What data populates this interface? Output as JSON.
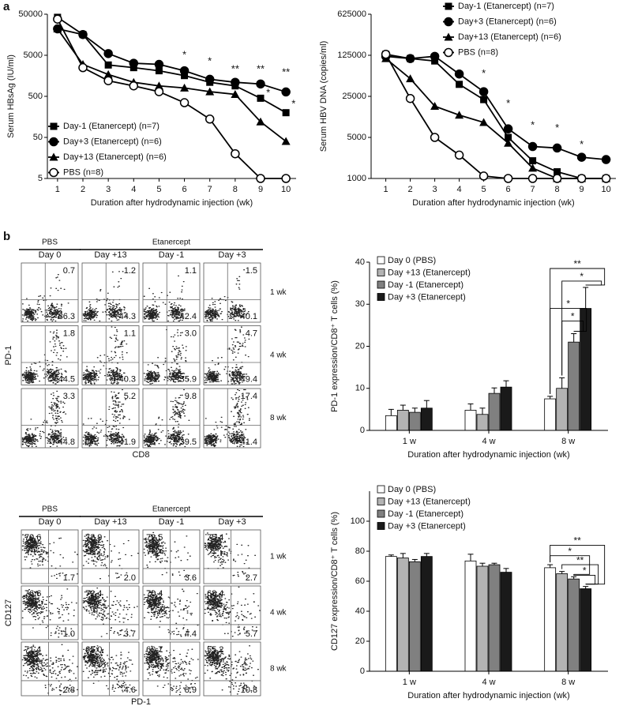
{
  "panel_labels": [
    "a",
    "b"
  ],
  "chart_data": [
    {
      "type": "line",
      "y_label": "Serum HBsAg (IU/ml)",
      "x_label": "Duration after hydrodynamic injection (wk)",
      "x": [
        1,
        2,
        3,
        4,
        5,
        6,
        7,
        8,
        9,
        10
      ],
      "xlim": [
        0.6,
        10.4
      ],
      "xticks": [
        1,
        2,
        3,
        4,
        5,
        6,
        7,
        8,
        9,
        10
      ],
      "ylim": [
        5,
        50000
      ],
      "yticks": [
        5,
        50,
        500,
        5000,
        50000
      ],
      "log_y": true,
      "legend": "lower left",
      "series": [
        {
          "name": "Day-1 (Etanercept) (n=7)",
          "marker": "square",
          "color": "#000000",
          "values": [
            42000,
            16000,
            2900,
            2500,
            2100,
            1600,
            1100,
            900,
            450,
            200
          ]
        },
        {
          "name": "Day+3 (Etanercept) (n=6)",
          "marker": "circle",
          "color": "#000000",
          "values": [
            22000,
            16000,
            5500,
            3200,
            3000,
            2100,
            1300,
            1100,
            1000,
            640
          ]
        },
        {
          "name": "Day+13 (Etanercept) (n=6)",
          "marker": "triangle",
          "color": "#000000",
          "values": [
            22000,
            3000,
            1700,
            1100,
            900,
            800,
            650,
            560,
            120,
            40
          ]
        },
        {
          "name": "PBS (n=8)",
          "marker": "circle-open",
          "color": "#000000",
          "values": [
            38000,
            2500,
            1200,
            900,
            650,
            350,
            140,
            20,
            5,
            5
          ]
        }
      ],
      "annotations": [
        {
          "text": "*",
          "x": 6,
          "y": 5000
        },
        {
          "text": "*",
          "x": 7,
          "y": 3500
        },
        {
          "text": "**",
          "x": 8,
          "y": 2250
        },
        {
          "text": "**",
          "x": 9,
          "y": 2250
        },
        {
          "text": "**",
          "x": 10,
          "y": 1900
        },
        {
          "text": "*",
          "x": 9.3,
          "y": 600
        },
        {
          "text": "*",
          "x": 10.3,
          "y": 320
        }
      ]
    },
    {
      "type": "line",
      "y_label": "Serum HBV DNA (copies/ml)",
      "x_label": "Duration after hydrodynamic injection (wk)",
      "x": [
        1,
        2,
        3,
        4,
        5,
        6,
        7,
        8,
        9,
        10
      ],
      "xlim": [
        0.4,
        10.4
      ],
      "xticks": [
        1,
        2,
        3,
        4,
        5,
        6,
        7,
        8,
        9,
        10
      ],
      "ylim": [
        1000,
        625000
      ],
      "yticks": [
        1000,
        5000,
        25000,
        125000,
        625000
      ],
      "log_y": true,
      "legend": "upper right",
      "series": [
        {
          "name": "Day-1 (Etanercept) (n=7)",
          "marker": "square",
          "color": "#000000",
          "values": [
            130000,
            110000,
            100000,
            40000,
            22000,
            5000,
            2000,
            1300,
            1000,
            1000
          ]
        },
        {
          "name": "Day+3 (Etanercept) (n=6)",
          "marker": "circle",
          "color": "#000000",
          "values": [
            120000,
            110000,
            120000,
            60000,
            30000,
            7000,
            3500,
            3300,
            2300,
            2100
          ]
        },
        {
          "name": "Day+13 (Etanercept) (n=6)",
          "marker": "triangle",
          "color": "#000000",
          "values": [
            110000,
            50000,
            17000,
            12000,
            9000,
            4000,
            1500,
            1000,
            1000,
            1000
          ]
        },
        {
          "name": "PBS (n=8)",
          "marker": "circle-open",
          "color": "#000000",
          "values": [
            130000,
            23000,
            5000,
            2500,
            1100,
            1000,
            1000,
            1000,
            1000,
            1000
          ]
        }
      ],
      "annotations": [
        {
          "text": "*",
          "x": 5,
          "y": 60000
        },
        {
          "text": "*",
          "x": 6,
          "y": 18600
        },
        {
          "text": "*",
          "x": 7,
          "y": 8000
        },
        {
          "text": "*",
          "x": 8,
          "y": 7100
        },
        {
          "text": "*",
          "x": 9,
          "y": 3700
        }
      ]
    },
    {
      "type": "bar",
      "y_label": "PD-1 expression/CD8⁺ T cells (%)",
      "x_label": "Duration after hydrodynamic injection (wk)",
      "categories": [
        "1 w",
        "4 w",
        "8 w"
      ],
      "ylim": [
        0,
        40
      ],
      "yticks": [
        0,
        10,
        20,
        30,
        40
      ],
      "legend": "upper left",
      "series": [
        {
          "name": "Day 0 (PBS)",
          "color": "#ffffff",
          "values": [
            3.5,
            4.8,
            7.5
          ],
          "errors": [
            1.5,
            1.5,
            0.6
          ]
        },
        {
          "name": "Day +13 (Etanercept)",
          "color": "#b3b3b3",
          "values": [
            4.8,
            3.8,
            10
          ],
          "errors": [
            1.2,
            1.5,
            2.5
          ]
        },
        {
          "name": "Day -1 (Etanercept)",
          "color": "#808080",
          "values": [
            4.3,
            8.8,
            21
          ],
          "errors": [
            1,
            1.3,
            2
          ]
        },
        {
          "name": "Day +3 (Etanercept)",
          "color": "#1a1a1a",
          "values": [
            5.3,
            10.3,
            29
          ],
          "errors": [
            1.8,
            1.5,
            5
          ]
        }
      ],
      "significance": [
        {
          "category": 2,
          "from": 0,
          "to": 3,
          "y": 38.5,
          "label": "**"
        },
        {
          "category": 2,
          "from": 1,
          "to": 3,
          "y": 35.5,
          "label": "*"
        },
        {
          "category": 2,
          "from": 0,
          "to": 2,
          "y": 29,
          "label": "*"
        },
        {
          "category": 2,
          "from": 1,
          "to": 2,
          "y": 26,
          "label": "*"
        }
      ]
    },
    {
      "type": "bar",
      "y_label": "CD127 expression/CD8⁺ T cells (%)",
      "x_label": "Duration after hydrodynamic injection (wk)",
      "categories": [
        "1 w",
        "4 w",
        "8 w"
      ],
      "ylim": [
        0,
        120
      ],
      "yticks": [
        0,
        20,
        40,
        60,
        80,
        100
      ],
      "legend": "upper left",
      "series": [
        {
          "name": "Day 0 (PBS)",
          "color": "#ffffff",
          "values": [
            76.5,
            73.5,
            69
          ],
          "errors": [
            1,
            4.5,
            2
          ]
        },
        {
          "name": "Day +13 (Etanercept)",
          "color": "#b3b3b3",
          "values": [
            75.5,
            70,
            65
          ],
          "errors": [
            3,
            2,
            1.5
          ]
        },
        {
          "name": "Day -1 (Etanercept)",
          "color": "#808080",
          "values": [
            73,
            71,
            61.5
          ],
          "errors": [
            1.5,
            1,
            1.5
          ]
        },
        {
          "name": "Day +3 (Etanercept)",
          "color": "#1a1a1a",
          "values": [
            76.5,
            66,
            55
          ],
          "errors": [
            2,
            2.5,
            1.5
          ]
        }
      ],
      "significance": [
        {
          "category": 2,
          "from": 0,
          "to": 3,
          "y": 84,
          "label": "**"
        },
        {
          "category": 2,
          "from": 0,
          "to": 2,
          "y": 77,
          "label": "*"
        },
        {
          "category": 2,
          "from": 1,
          "to": 3,
          "y": 71,
          "label": "**"
        },
        {
          "category": 2,
          "from": 2,
          "to": 3,
          "y": 64,
          "label": "*"
        }
      ]
    }
  ],
  "flow_panels": [
    {
      "groups": [
        "PBS",
        "Etanercept"
      ],
      "columns": [
        "Day 0",
        "Day +13",
        "Day -1",
        "Day +3"
      ],
      "rows": [
        "1 wk",
        "4 wk",
        "8 wk"
      ],
      "y_label": "PD-1",
      "x_label": "CD8",
      "corners": [
        "top-right",
        "bottom-right"
      ],
      "cells": [
        [
          [
            "0.7",
            "36.3"
          ],
          [
            "1.2",
            "44.3"
          ],
          [
            "1.1",
            "42.4"
          ],
          [
            "1.5",
            "40.1"
          ]
        ],
        [
          [
            "1.8",
            "44.5"
          ],
          [
            "1.1",
            "40.3"
          ],
          [
            "3.0",
            "35.9"
          ],
          [
            "4.7",
            "49.4"
          ]
        ],
        [
          [
            "3.3",
            "44.8"
          ],
          [
            "5.2",
            "41.9"
          ],
          [
            "9.8",
            "39.5"
          ],
          [
            "17.4",
            "41.4"
          ]
        ]
      ]
    },
    {
      "groups": [
        "PBS",
        "Etanercept"
      ],
      "columns": [
        "Day 0",
        "Day +13",
        "Day -1",
        "Day +3"
      ],
      "rows": [
        "1 wk",
        "4 wk",
        "8 wk"
      ],
      "y_label": "CD127",
      "x_label": "PD-1",
      "corners": [
        "top-left",
        "bottom-right"
      ],
      "cells": [
        [
          [
            "79.6",
            "1.7"
          ],
          [
            "72.9",
            "2.0"
          ],
          [
            "72.5",
            "3.6"
          ],
          [
            "75.4",
            "2.7"
          ]
        ],
        [
          [
            "76.6",
            "1.0"
          ],
          [
            "72.4",
            "3.7"
          ],
          [
            "70.4",
            "4.4"
          ],
          [
            "68.4",
            "5.7"
          ]
        ],
        [
          [
            "71.4",
            "2.8"
          ],
          [
            "65.0",
            "4.6"
          ],
          [
            "60.7",
            "8.9"
          ],
          [
            "55.2",
            "10.8"
          ]
        ]
      ]
    }
  ]
}
